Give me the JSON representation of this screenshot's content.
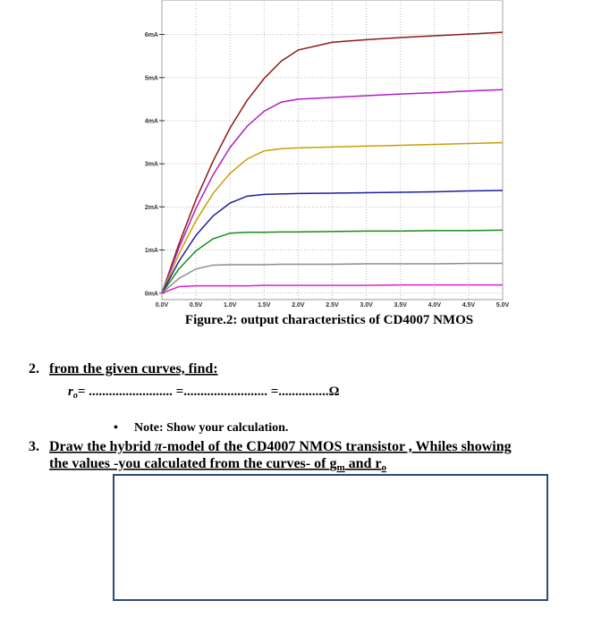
{
  "chart_data": {
    "type": "line",
    "x": [
      0,
      0.25,
      0.5,
      0.75,
      1,
      1.25,
      1.5,
      1.75,
      2,
      2.5,
      3,
      3.5,
      4,
      4.5,
      5
    ],
    "series": [
      {
        "color": "#8b1a1a",
        "values": [
          0,
          1.14,
          2.17,
          3.06,
          3.83,
          4.47,
          4.98,
          5.38,
          5.64,
          5.82,
          5.88,
          5.93,
          5.97,
          6.01,
          6.05
        ]
      },
      {
        "color": "#b01fc4",
        "values": [
          0,
          1.05,
          1.97,
          2.74,
          3.38,
          3.87,
          4.22,
          4.43,
          4.5,
          4.54,
          4.58,
          4.62,
          4.65,
          4.69,
          4.72
        ]
      },
      {
        "color": "#c8a000",
        "values": [
          0,
          0.91,
          1.68,
          2.31,
          2.78,
          3.11,
          3.3,
          3.35,
          3.37,
          3.39,
          3.41,
          3.43,
          3.45,
          3.47,
          3.49
        ]
      },
      {
        "color": "#1f1fa0",
        "values": [
          0,
          0.74,
          1.34,
          1.79,
          2.09,
          2.25,
          2.29,
          2.3,
          2.31,
          2.32,
          2.33,
          2.34,
          2.35,
          2.37,
          2.38
        ]
      },
      {
        "color": "#1a8a1a",
        "values": [
          0,
          0.56,
          0.98,
          1.26,
          1.39,
          1.41,
          1.41,
          1.42,
          1.42,
          1.43,
          1.44,
          1.44,
          1.45,
          1.45,
          1.46
        ]
      },
      {
        "color": "#8c8c8c",
        "values": [
          0,
          0.34,
          0.56,
          0.65,
          0.66,
          0.66,
          0.66,
          0.67,
          0.67,
          0.67,
          0.68,
          0.68,
          0.68,
          0.69,
          0.69
        ]
      },
      {
        "color": "#e01fd0",
        "values": [
          0,
          0.15,
          0.17,
          0.17,
          0.17,
          0.17,
          0.18,
          0.18,
          0.18,
          0.18,
          0.18,
          0.19,
          0.19,
          0.19,
          0.19
        ]
      }
    ],
    "xlim": [
      0,
      5
    ],
    "ylim": [
      -0.15,
      6.8
    ],
    "xticks": [
      {
        "value": 0,
        "label": "0.0V"
      },
      {
        "value": 0.5,
        "label": "0.5V"
      },
      {
        "value": 1,
        "label": "1.0V"
      },
      {
        "value": 1.5,
        "label": "1.5V"
      },
      {
        "value": 2,
        "label": "2.0V"
      },
      {
        "value": 2.5,
        "label": "2.5V"
      },
      {
        "value": 3,
        "label": "3.0V"
      },
      {
        "value": 3.5,
        "label": "3.5V"
      },
      {
        "value": 4,
        "label": "4.0V"
      },
      {
        "value": 4.5,
        "label": "4.5V"
      },
      {
        "value": 5,
        "label": "5.0V"
      }
    ],
    "yticks": [
      {
        "value": 0,
        "label": "0mA"
      },
      {
        "value": 1,
        "label": "1mA"
      },
      {
        "value": 2,
        "label": "2mA"
      },
      {
        "value": 3,
        "label": "3mA"
      },
      {
        "value": 4,
        "label": "4mA"
      },
      {
        "value": 5,
        "label": "5mA"
      },
      {
        "value": 6,
        "label": "6mA"
      }
    ],
    "grid": true
  },
  "document": {
    "caption": "Figure.2: output characteristics of CD4007 NMOS",
    "q2": {
      "number": "2.",
      "text": "from the given curves, find:",
      "formula": {
        "symbol": "r",
        "subscript": "o",
        "rest": "= ......................... =......................... =...............Ω"
      }
    },
    "note": "Note: Show your calculation.",
    "q3": {
      "number": "3.",
      "line1": [
        "Draw the hybrid ",
        "π",
        "-model of the CD4007 NMOS transistor , Whiles showing"
      ],
      "line2": [
        "the values -you calculated from the curves- of ",
        "g",
        "m",
        " and r",
        "o"
      ]
    }
  }
}
